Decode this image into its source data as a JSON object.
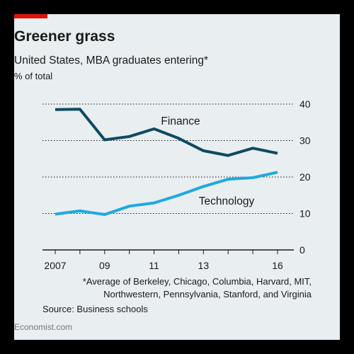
{
  "colors": {
    "background": "#e9eef1",
    "finance": "#0e4a63",
    "technology": "#1fa9e0",
    "brand": "#e3120b"
  },
  "source": "Source: Business schools",
  "branding": "Economist.com",
  "chart_data": {
    "type": "line",
    "title": "Greener grass",
    "subtitle": "United States, MBA graduates entering*",
    "ylabel": "% of total",
    "xlabel": "",
    "x": [
      2007,
      2008,
      2009,
      2010,
      2011,
      2012,
      2013,
      2014,
      2015,
      2016
    ],
    "x_tick_values": [
      2007,
      2009,
      2011,
      2013,
      2016
    ],
    "x_tick_labels": [
      "2007",
      "09",
      "11",
      "13",
      "16"
    ],
    "ylim": [
      0,
      40
    ],
    "y_ticks": [
      0,
      10,
      20,
      30,
      40
    ],
    "y_axis_side": "right",
    "grid": true,
    "series": [
      {
        "name": "Finance",
        "color": "#0e4a63",
        "values": [
          38.5,
          38.6,
          30.2,
          31.1,
          33.2,
          30.6,
          27.2,
          25.9,
          27.9,
          26.5
        ]
      },
      {
        "name": "Technology",
        "color": "#1fa9e0",
        "values": [
          9.8,
          10.7,
          9.7,
          12.0,
          12.9,
          15.0,
          17.4,
          19.4,
          19.8,
          21.3
        ]
      }
    ],
    "annotations": [
      "*Average of Berkeley, Chicago, Columbia, Harvard, MIT, Northwestern, Pennsylvania, Stanford, and Virginia"
    ]
  }
}
